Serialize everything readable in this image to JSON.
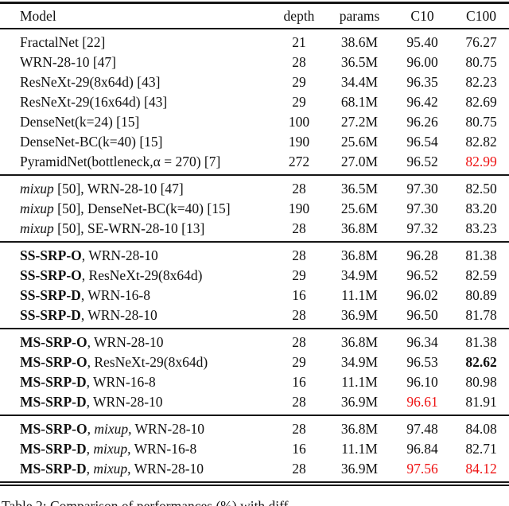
{
  "colors": {
    "background": "#ffffff",
    "text": "#111111",
    "rule": "#151515",
    "highlight_red": "#ee1111"
  },
  "caption": "Table 2: Comparison of performances (%) with diff",
  "table": {
    "columns": [
      "Model",
      "depth",
      "params",
      "C10",
      "C100"
    ],
    "sections": [
      {
        "name": "baselines",
        "rows": [
          {
            "b": "",
            "s": "",
            "i": "",
            "r": "FractalNet [22]",
            "depth": "21",
            "params": "38.6M",
            "c10": "95.40",
            "c100": "76.27"
          },
          {
            "b": "",
            "s": "",
            "i": "",
            "r": "WRN-28-10 [47]",
            "depth": "28",
            "params": "36.5M",
            "c10": "96.00",
            "c100": "80.75"
          },
          {
            "b": "",
            "s": "",
            "i": "",
            "r": "ResNeXt-29(8x64d) [43]",
            "depth": "29",
            "params": "34.4M",
            "c10": "96.35",
            "c100": "82.23"
          },
          {
            "b": "",
            "s": "",
            "i": "",
            "r": "ResNeXt-29(16x64d) [43]",
            "depth": "29",
            "params": "68.1M",
            "c10": "96.42",
            "c100": "82.69"
          },
          {
            "b": "",
            "s": "",
            "i": "",
            "r": "DenseNet(k=24) [15]",
            "depth": "100",
            "params": "27.2M",
            "c10": "96.26",
            "c100": "80.75"
          },
          {
            "b": "",
            "s": "",
            "i": "",
            "r": "DenseNet-BC(k=40) [15]",
            "depth": "190",
            "params": "25.6M",
            "c10": "96.54",
            "c100": "82.82"
          },
          {
            "b": "",
            "s": "",
            "i": "",
            "r": "PyramidNet(bottleneck,α = 270) [7]",
            "depth": "272",
            "params": "27.0M",
            "c10": "96.52",
            "c100": "82.99"
          }
        ]
      },
      {
        "name": "mixup",
        "rows": [
          {
            "b": "",
            "s": "",
            "i": "mixup",
            "r": " [50], WRN-28-10 [47]",
            "depth": "28",
            "params": "36.5M",
            "c10": "97.30",
            "c100": "82.50"
          },
          {
            "b": "",
            "s": "",
            "i": "mixup",
            "r": " [50], DenseNet-BC(k=40) [15]",
            "depth": "190",
            "params": "25.6M",
            "c10": "97.30",
            "c100": "83.20"
          },
          {
            "b": "",
            "s": "",
            "i": "mixup",
            "r": " [50], SE-WRN-28-10 [13]",
            "depth": "28",
            "params": "36.8M",
            "c10": "97.32",
            "c100": "83.23"
          }
        ]
      },
      {
        "name": "ss-srp",
        "rows": [
          {
            "b": "SS-SRP-O",
            "s": "",
            "i": "",
            "r": ", WRN-28-10",
            "depth": "28",
            "params": "36.8M",
            "c10": "96.28",
            "c100": "81.38"
          },
          {
            "b": "SS-SRP-O",
            "s": "",
            "i": "",
            "r": ", ResNeXt-29(8x64d)",
            "depth": "29",
            "params": "34.9M",
            "c10": "96.52",
            "c100": "82.59"
          },
          {
            "b": "SS-SRP-D",
            "s": "",
            "i": "",
            "r": ", WRN-16-8",
            "depth": "16",
            "params": "11.1M",
            "c10": "96.02",
            "c100": "80.89"
          },
          {
            "b": "SS-SRP-D",
            "s": "",
            "i": "",
            "r": ", WRN-28-10",
            "depth": "28",
            "params": "36.9M",
            "c10": "96.50",
            "c100": "81.78"
          }
        ]
      },
      {
        "name": "ms-srp",
        "rows": [
          {
            "b": "MS-SRP-O",
            "s": "",
            "i": "",
            "r": ", WRN-28-10",
            "depth": "28",
            "params": "36.8M",
            "c10": "96.34",
            "c100": "81.38"
          },
          {
            "b": "MS-SRP-O",
            "s": "",
            "i": "",
            "r": ", ResNeXt-29(8x64d)",
            "depth": "29",
            "params": "34.9M",
            "c10": "96.53",
            "c100": "82.62"
          },
          {
            "b": "MS-SRP-D",
            "s": "",
            "i": "",
            "r": ", WRN-16-8",
            "depth": "16",
            "params": "11.1M",
            "c10": "96.10",
            "c100": "80.98"
          },
          {
            "b": "MS-SRP-D",
            "s": "",
            "i": "",
            "r": ", WRN-28-10",
            "depth": "28",
            "params": "36.9M",
            "c10": "96.61",
            "c100": "81.91"
          }
        ]
      },
      {
        "name": "ms-srp-mixup",
        "rows": [
          {
            "b": "MS-SRP-O",
            "s": ", ",
            "i": "mixup",
            "r": ", WRN-28-10",
            "depth": "28",
            "params": "36.8M",
            "c10": "97.48",
            "c100": "84.08"
          },
          {
            "b": "MS-SRP-D",
            "s": ", ",
            "i": "mixup",
            "r": ", WRN-16-8",
            "depth": "16",
            "params": "11.1M",
            "c10": "96.84",
            "c100": "82.71"
          },
          {
            "b": "MS-SRP-D",
            "s": ", ",
            "i": "mixup",
            "r": ", WRN-28-10",
            "depth": "28",
            "params": "36.9M",
            "c10": "97.56",
            "c100": "84.12"
          }
        ]
      }
    ]
  }
}
